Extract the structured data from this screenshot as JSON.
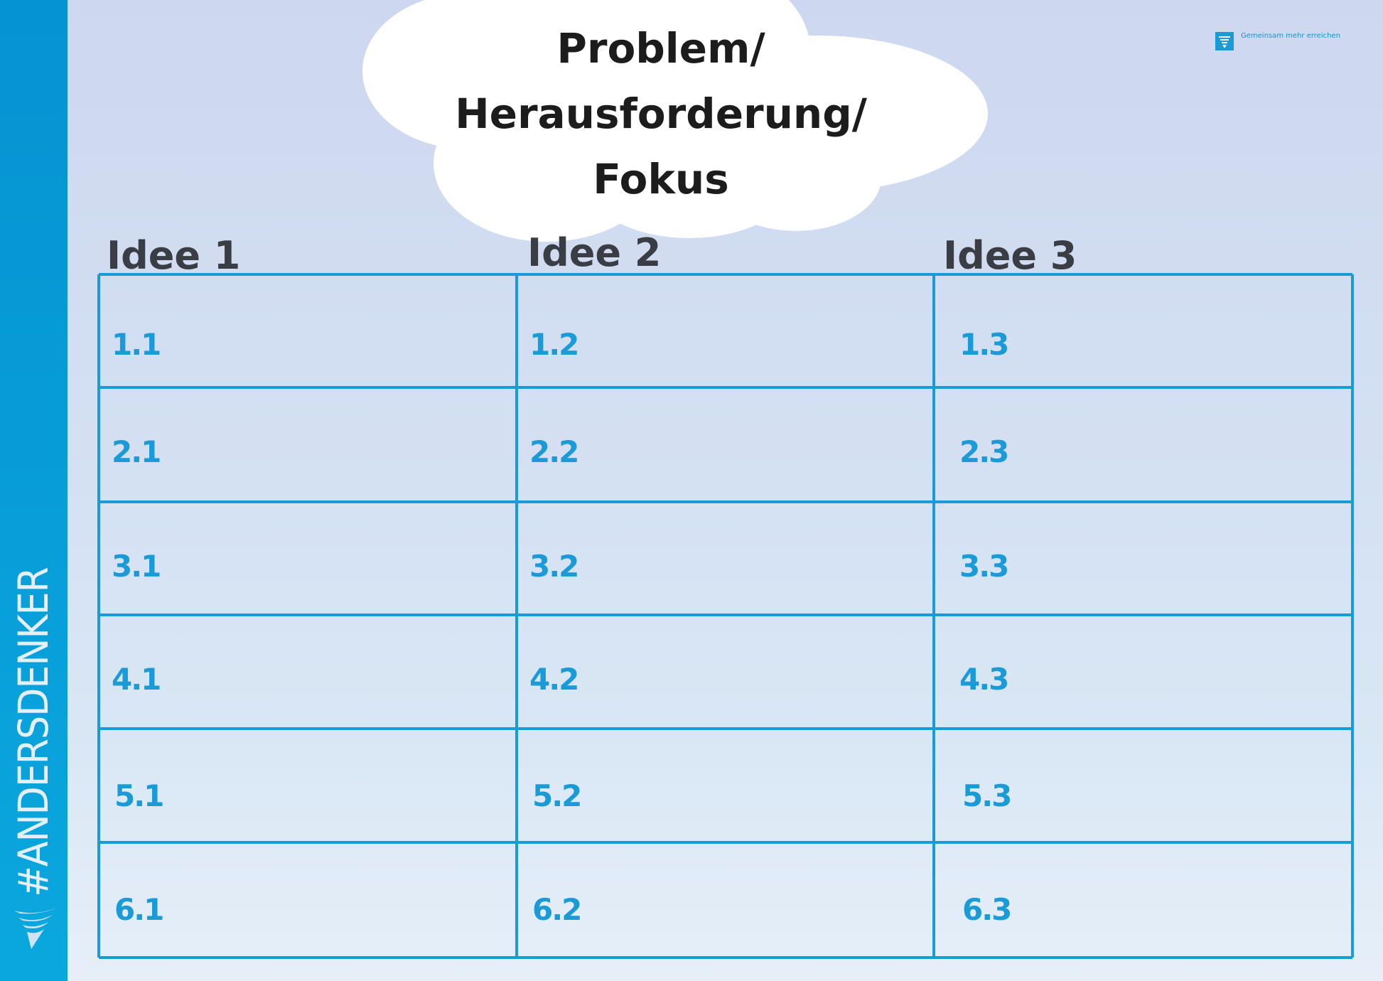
{
  "sidebar": {
    "text": "#ANDERSDENKER",
    "icon": "tornado-logo-icon"
  },
  "header": {
    "title": "Problem/\nHerausforderung/\nFokus"
  },
  "brand": {
    "tagline": "Gemeinsam mehr erreichen",
    "icon": "tornado-logo-icon"
  },
  "columns": [
    "Idee 1",
    "Idee 2",
    "Idee 3"
  ],
  "rows": [
    [
      "1.1",
      "1.2",
      "1.3"
    ],
    [
      "2.1",
      "2.2",
      "2.3"
    ],
    [
      "3.1",
      "3.2",
      "3.3"
    ],
    [
      "4.1",
      "4.2",
      "4.3"
    ],
    [
      "5.1",
      "5.2",
      "5.3"
    ],
    [
      "6.1",
      "6.2",
      "6.3"
    ]
  ],
  "colors": {
    "accent": "#1a9ad6",
    "sidebar": "#0598d6"
  }
}
